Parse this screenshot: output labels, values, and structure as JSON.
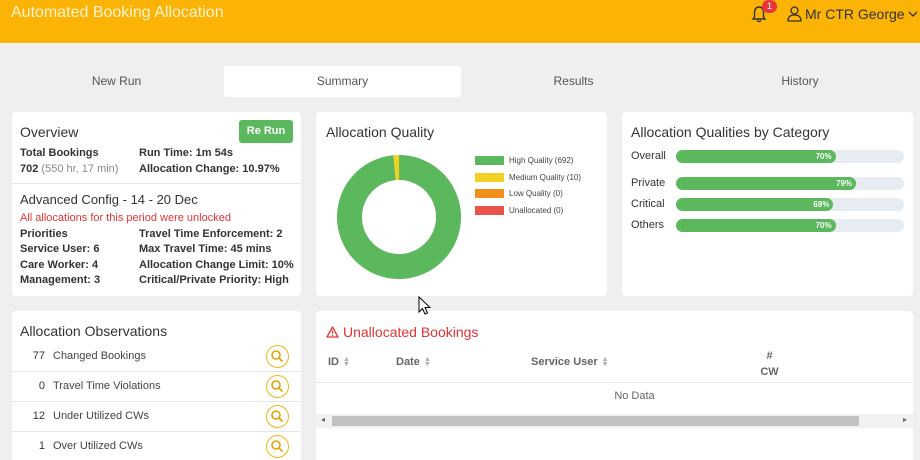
{
  "header": {
    "title": "Automated Booking Allocation",
    "notification_count": "1",
    "user_name": "Mr CTR George"
  },
  "tabs": [
    {
      "label": "New Run"
    },
    {
      "label": "Summary"
    },
    {
      "label": "Results"
    },
    {
      "label": "History"
    }
  ],
  "overview": {
    "title": "Overview",
    "rerun_label": "Re Run",
    "total_bookings_label": "Total Bookings",
    "total_bookings_value": "702",
    "total_bookings_hours": "(550 hr, 17 min)",
    "run_time_label": "Run Time:",
    "run_time_value": "1m 54s",
    "allocation_change_label": "Allocation Change:",
    "allocation_change_value": "10.97%",
    "advanced_title": "Advanced Config - 14 - 20 Dec",
    "unlocked_warning": "All allocations for this period were unlocked",
    "priorities_label": "Priorities",
    "service_user_label": "Service User:",
    "service_user_value": "6",
    "care_worker_label": "Care Worker:",
    "care_worker_value": "4",
    "management_label": "Management:",
    "management_value": "3",
    "travel_enforcement_label": "Travel Time Enforcement:",
    "travel_enforcement_value": "2",
    "max_travel_label": "Max Travel Time:",
    "max_travel_value": "45 mins",
    "change_limit_label": "Allocation Change Limit:",
    "change_limit_value": "10%",
    "critical_private_label": "Critical/Private Priority:",
    "critical_private_value": "High"
  },
  "quality": {
    "title": "Allocation Quality",
    "legend": [
      {
        "label": "High Quality (692)",
        "value": 692,
        "color": "#5cb85c"
      },
      {
        "label": "Medium Quality (10)",
        "value": 10,
        "color": "#f2d024"
      },
      {
        "label": "Low Quality (0)",
        "value": 0,
        "color": "#f0901a"
      },
      {
        "label": "Unallocated (0)",
        "value": 0,
        "color": "#e8534b"
      }
    ]
  },
  "categories": {
    "title": "Allocation Qualities by Category",
    "items": [
      {
        "label": "Overall",
        "value": 70,
        "text": "70%"
      },
      {
        "label": "Private",
        "value": 79,
        "text": "79%"
      },
      {
        "label": "Critical",
        "value": 69,
        "text": "69%"
      },
      {
        "label": "Others",
        "value": 70,
        "text": "70%"
      }
    ]
  },
  "observations": {
    "title": "Allocation Observations",
    "items": [
      {
        "count": "77",
        "label": "Changed Bookings"
      },
      {
        "count": "0",
        "label": "Travel Time Violations"
      },
      {
        "count": "12",
        "label": "Under Utilized CWs"
      },
      {
        "count": "1",
        "label": "Over Utilized CWs"
      }
    ]
  },
  "unallocated": {
    "title": "Unallocated Bookings",
    "columns": {
      "id": "ID",
      "date": "Date",
      "service_user": "Service User",
      "cw_hash": "#",
      "cw": "CW"
    },
    "empty_text": "No Data"
  },
  "colors": {
    "header_bg": "#fbb306",
    "accent_green": "#5cb85c",
    "warning_red": "#e23434",
    "search_ring": "#f1b413"
  }
}
